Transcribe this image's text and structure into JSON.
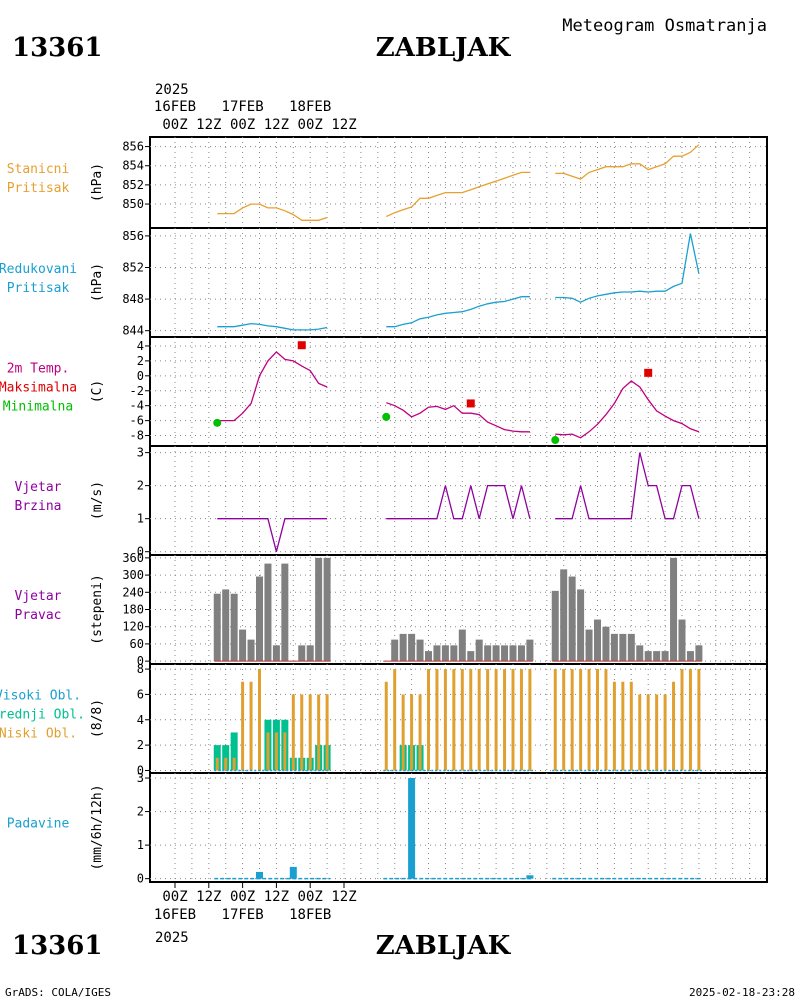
{
  "header": {
    "station_id": "13361",
    "station_name": "ZABLJAK",
    "meteogram_title": "Meteogram Osmatranja"
  },
  "footer": {
    "credit": "GrADS: COLA/IGES",
    "timestamp": "2025-02-18-23:28"
  },
  "colors": {
    "pressure_station": "#e8a030",
    "pressure_reduced": "#1aa0d0",
    "temp_max": "#e00000",
    "temp_min": "#00c000",
    "temp_line": "#c00080",
    "wind": "#9000a0",
    "bars_gray": "#808080",
    "cloud_high": "#1aa0d0",
    "cloud_mid": "#00c090",
    "cloud_low": "#e0a030",
    "precip": "#1aa0d0"
  },
  "chart_data": [
    {
      "id": "station_pressure",
      "type": "line",
      "label_lines": [
        "Stanicni",
        "Pritisak"
      ],
      "ylabel": "(hPa)",
      "ylim": [
        847.5,
        857
      ],
      "yticks": [
        850,
        852,
        854,
        856
      ],
      "x": [
        5,
        6,
        7,
        8,
        9,
        10,
        11,
        12,
        13,
        14,
        15,
        16,
        17,
        18,
        25,
        26,
        27,
        28,
        29,
        30,
        31,
        32,
        33,
        34,
        35,
        36,
        37,
        38,
        39,
        40,
        41,
        42,
        45,
        46,
        47,
        48,
        49,
        50,
        51,
        52,
        53,
        54,
        55,
        56,
        57,
        58,
        59,
        60,
        61,
        62
      ],
      "values": [
        849,
        849,
        849,
        849.6,
        850,
        850,
        849.6,
        849.6,
        849.3,
        848.9,
        848.3,
        848.3,
        848.3,
        848.6,
        848.7,
        849.1,
        849.4,
        849.7,
        850.6,
        850.6,
        850.9,
        851.2,
        851.2,
        851.2,
        851.5,
        851.8,
        852.1,
        852.4,
        852.7,
        853,
        853.3,
        853.3,
        853.2,
        853.2,
        852.9,
        852.6,
        853.3,
        853.6,
        853.9,
        853.9,
        853.9,
        854.2,
        854.2,
        853.6,
        853.9,
        854.2,
        855,
        855,
        855.4,
        856.2
      ]
    },
    {
      "id": "reduced_pressure",
      "type": "line",
      "label_lines": [
        "Redukovani",
        "Pritisak"
      ],
      "ylabel": "(hPa)",
      "ylim": [
        843.2,
        857
      ],
      "yticks": [
        844,
        848,
        852,
        856
      ],
      "x": [
        5,
        6,
        7,
        8,
        9,
        10,
        11,
        12,
        13,
        14,
        15,
        16,
        17,
        18,
        25,
        26,
        27,
        28,
        29,
        30,
        31,
        32,
        33,
        34,
        35,
        36,
        37,
        38,
        39,
        40,
        41,
        42,
        45,
        46,
        47,
        48,
        49,
        50,
        51,
        52,
        53,
        54,
        55,
        56,
        57,
        58,
        59,
        60,
        61,
        62
      ],
      "values": [
        844.5,
        844.5,
        844.5,
        844.7,
        844.9,
        844.8,
        844.6,
        844.5,
        844.3,
        844.1,
        844.1,
        844.1,
        844.2,
        844.4,
        844.5,
        844.5,
        844.8,
        845,
        845.5,
        845.7,
        846,
        846.2,
        846.3,
        846.4,
        846.7,
        847.1,
        847.4,
        847.6,
        847.7,
        848,
        848.3,
        848.3,
        848.2,
        848.2,
        848.1,
        847.6,
        848.1,
        848.4,
        848.6,
        848.8,
        848.9,
        848.9,
        849,
        848.9,
        849,
        849,
        849.6,
        850,
        856.3,
        851.2
      ]
    },
    {
      "id": "temperature",
      "type": "line",
      "label_lines": [
        "2m Temp.",
        "Maksimalna",
        "Minimalna"
      ],
      "ylabel": "(C)",
      "ylim": [
        -9.4,
        5.2
      ],
      "yticks": [
        -8,
        -6,
        -4,
        -2,
        0,
        2,
        4
      ],
      "x": [
        5,
        6,
        7,
        8,
        9,
        10,
        11,
        12,
        13,
        14,
        15,
        16,
        17,
        18,
        25,
        26,
        27,
        28,
        29,
        30,
        31,
        32,
        33,
        34,
        35,
        36,
        37,
        38,
        39,
        40,
        41,
        42,
        45,
        46,
        47,
        48,
        49,
        50,
        51,
        52,
        53,
        54,
        55,
        56,
        57,
        58,
        59,
        60,
        61,
        62
      ],
      "values": [
        -6,
        -6,
        -6,
        -5,
        -3.7,
        0,
        2,
        3.2,
        2.2,
        2,
        1.3,
        0.7,
        -1,
        -1.5,
        -3.6,
        -4,
        -4.6,
        -5.5,
        -5,
        -4.2,
        -4.1,
        -4.5,
        -4,
        -5,
        -5,
        -5.2,
        -6.2,
        -6.7,
        -7.2,
        -7.4,
        -7.5,
        -7.5,
        -7.8,
        -7.9,
        -7.8,
        -8.3,
        -7.5,
        -6.5,
        -5.2,
        -3.7,
        -1.7,
        -0.7,
        -1.5,
        -3.2,
        -4.7,
        -5.4,
        -6,
        -6.4,
        -7.1,
        -7.5
      ]
    },
    {
      "id": "temp_max_points",
      "type": "scatter",
      "series": [
        {
          "name": "Maksimalna",
          "x": [
            15,
            35,
            56
          ],
          "values": [
            4.1,
            -3.7,
            0.4
          ]
        }
      ]
    },
    {
      "id": "temp_min_points",
      "type": "scatter",
      "series": [
        {
          "name": "Minimalna",
          "x": [
            5,
            25,
            45
          ],
          "values": [
            -6.3,
            -5.5,
            -8.6
          ]
        }
      ]
    },
    {
      "id": "wind_speed",
      "type": "line",
      "label_lines": [
        "Vjetar",
        "Brzina"
      ],
      "ylabel": "(m/s)",
      "ylim": [
        -0.1,
        3.2
      ],
      "yticks": [
        0,
        1,
        2,
        3
      ],
      "x": [
        5,
        6,
        7,
        8,
        9,
        10,
        11,
        12,
        13,
        14,
        15,
        16,
        17,
        18,
        25,
        26,
        27,
        28,
        29,
        30,
        31,
        32,
        33,
        34,
        35,
        36,
        37,
        38,
        39,
        40,
        41,
        42,
        45,
        46,
        47,
        48,
        49,
        50,
        51,
        52,
        53,
        54,
        55,
        56,
        57,
        58,
        59,
        60,
        61,
        62
      ],
      "values": [
        1,
        1,
        1,
        1,
        1,
        1,
        1,
        0,
        1,
        1,
        1,
        1,
        1,
        1,
        1,
        1,
        1,
        1,
        1,
        1,
        1,
        2,
        1,
        1,
        2,
        1,
        2,
        2,
        2,
        1,
        2,
        1,
        1,
        1,
        1,
        2,
        1,
        1,
        1,
        1,
        1,
        1,
        3,
        2,
        2,
        1,
        1,
        2,
        2,
        1
      ]
    },
    {
      "id": "wind_direction",
      "type": "bar",
      "label_lines": [
        "Vjetar",
        "Pravac"
      ],
      "ylabel": "(stepeni)",
      "ylim": [
        -10,
        370
      ],
      "yticks": [
        0,
        60,
        120,
        180,
        240,
        300,
        360
      ],
      "x": [
        5,
        6,
        7,
        8,
        9,
        10,
        11,
        12,
        13,
        14,
        15,
        16,
        17,
        18,
        25,
        26,
        27,
        28,
        29,
        30,
        31,
        32,
        33,
        34,
        35,
        36,
        37,
        38,
        39,
        40,
        41,
        42,
        45,
        46,
        47,
        48,
        49,
        50,
        51,
        52,
        53,
        54,
        55,
        56,
        57,
        58,
        59,
        60,
        61,
        62
      ],
      "values": [
        235,
        250,
        235,
        110,
        75,
        295,
        340,
        55,
        340,
        0,
        55,
        55,
        360,
        360,
        0,
        75,
        95,
        95,
        75,
        35,
        55,
        55,
        55,
        110,
        35,
        75,
        55,
        55,
        55,
        55,
        55,
        75,
        245,
        320,
        295,
        250,
        110,
        145,
        120,
        95,
        95,
        95,
        55,
        35,
        35,
        35,
        360,
        145,
        35,
        55
      ]
    },
    {
      "id": "clouds",
      "type": "bar",
      "label_lines": [
        "Visoki Obl.",
        "Srednji Obl.",
        "Niski Obl."
      ],
      "ylabel": "(8/8)",
      "ylim": [
        -0.2,
        8.4
      ],
      "yticks": [
        0,
        2,
        4,
        6,
        8
      ],
      "x": [
        5,
        6,
        7,
        8,
        9,
        10,
        11,
        12,
        13,
        14,
        15,
        16,
        17,
        18,
        25,
        26,
        27,
        28,
        29,
        30,
        31,
        32,
        33,
        34,
        35,
        36,
        37,
        38,
        39,
        40,
        41,
        42,
        45,
        46,
        47,
        48,
        49,
        50,
        51,
        52,
        53,
        54,
        55,
        56,
        57,
        58,
        59,
        60,
        61,
        62
      ],
      "series": [
        {
          "name": "Visoki Obl.",
          "values": [
            0,
            0,
            0,
            0,
            0,
            0,
            0,
            0,
            0,
            0,
            0,
            0,
            0,
            0,
            0,
            0,
            0,
            0,
            0,
            0,
            0,
            0,
            0,
            0,
            0,
            0,
            0,
            0,
            0,
            0,
            0,
            0,
            0,
            0,
            0,
            0,
            0,
            0,
            0,
            0,
            0,
            0,
            0,
            0,
            0,
            0,
            0,
            0,
            0,
            0
          ]
        },
        {
          "name": "Srednji Obl.",
          "values": [
            2,
            2,
            3,
            0,
            0,
            0,
            4,
            4,
            4,
            1,
            1,
            1,
            2,
            2,
            0,
            0,
            2,
            2,
            2,
            0,
            0,
            0,
            0,
            0,
            0,
            0,
            0,
            0,
            0,
            0,
            0,
            0,
            0,
            0,
            0,
            0,
            0,
            0,
            0,
            0,
            0,
            0,
            0,
            0,
            0,
            0,
            0,
            0,
            0,
            0
          ]
        },
        {
          "name": "Niski Obl.",
          "values": [
            1,
            1,
            1,
            7,
            7,
            8,
            3,
            3,
            3,
            6,
            6,
            6,
            6,
            6,
            7,
            8,
            6,
            6,
            6,
            8,
            8,
            8,
            8,
            8,
            8,
            8,
            8,
            8,
            8,
            8,
            8,
            8,
            8,
            8,
            8,
            8,
            8,
            8,
            8,
            7,
            7,
            7,
            6,
            6,
            6,
            6,
            7,
            8,
            8,
            8
          ]
        }
      ]
    },
    {
      "id": "precipitation",
      "type": "bar",
      "label_lines": [
        "Padavine"
      ],
      "ylabel": "(mm/6h/12h)",
      "ylim": [
        -0.1,
        3.15
      ],
      "yticks": [
        0,
        1,
        2,
        3
      ],
      "x": [
        4,
        10,
        14,
        20,
        28,
        42,
        46
      ],
      "values": [
        0,
        0.2,
        0.35,
        0,
        3.0,
        0.1,
        0
      ]
    }
  ],
  "axis": {
    "top_year": "2025",
    "bottom_year": "2025",
    "hours": [
      "00Z",
      "12Z",
      "00Z",
      "12Z",
      "00Z",
      "12Z"
    ],
    "dates": [
      "16FEB",
      "17FEB",
      "18FEB"
    ]
  }
}
